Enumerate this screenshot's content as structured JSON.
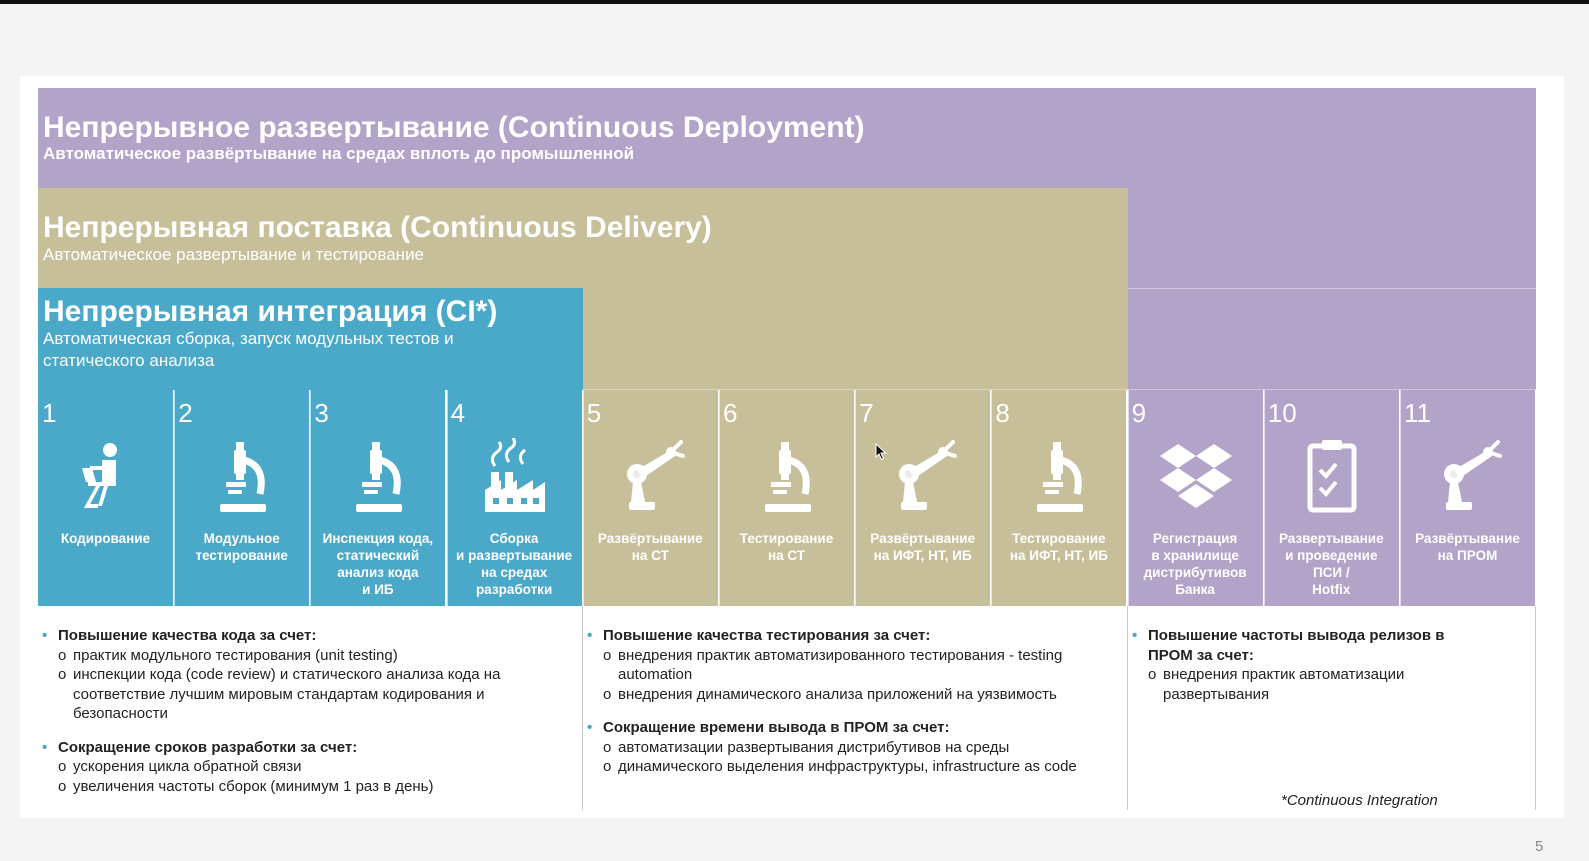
{
  "bands": {
    "cd": {
      "title": "Непрерывное развертывание (Continuous Deployment)",
      "subtitle": "Автоматическое развёртывание на средах вплоть до промышленной"
    },
    "cdl": {
      "title": "Непрерывная поставка (Continuous Delivery)",
      "subtitle": "Автоматическое развертывание и тестирование"
    },
    "ci": {
      "title": "Непрерывная интеграция (CI*)",
      "subtitle": "Автоматическая сборка, запуск модульных тестов и статического анализа"
    }
  },
  "steps": [
    {
      "num": "1",
      "label": "Кодирование",
      "icon": "coder-icon"
    },
    {
      "num": "2",
      "label": "Модульное\nтестирование",
      "icon": "microscope-icon"
    },
    {
      "num": "3",
      "label": "Инспекция кода,\nстатический\nанализ кода\nи ИБ",
      "icon": "microscope-icon"
    },
    {
      "num": "4",
      "label": "Сборка\nи развертывание\nна средах\nразработки",
      "icon": "factory-icon"
    },
    {
      "num": "5",
      "label": "Развёртывание\nна СТ",
      "icon": "robot-arm-icon"
    },
    {
      "num": "6",
      "label": "Тестирование\nна СТ",
      "icon": "microscope-icon"
    },
    {
      "num": "7",
      "label": "Развёртывание\nна ИФТ, НТ, ИБ",
      "icon": "robot-arm-icon"
    },
    {
      "num": "8",
      "label": "Тестирование\nна ИФТ, НТ, ИБ",
      "icon": "microscope-icon"
    },
    {
      "num": "9",
      "label": "Регистрация\nв хранилище\nдистрибутивов\nБанка",
      "icon": "dropbox-icon"
    },
    {
      "num": "10",
      "label": "Развертывание\nи проведение\nПСИ /\nHotfix",
      "icon": "clipboard-icon"
    },
    {
      "num": "11",
      "label": "Развёртывание\nна ПРОМ",
      "icon": "robot-arm-icon"
    }
  ],
  "columns": {
    "ci": {
      "b1": "Повышение качества кода за счет:",
      "b1_items": [
        "практик модульного тестирования (unit testing)",
        "инспекции кода (code review) и статического анализа кода на соответствие лучшим мировым стандартам кодирования и безопасности"
      ],
      "b2": "Сокращение сроков разработки за счет:",
      "b2_items": [
        "ускорения цикла обратной связи",
        "увеличения частоты сборок (минимум 1 раз в день)"
      ]
    },
    "cdl": {
      "b1": "Повышение качества тестирования за счет:",
      "b1_items": [
        "внедрения практик автоматизированного тестирования - testing automation",
        "внедрения динамического анализа приложений на уязвимость"
      ],
      "b2": "Сокращение времени вывода в ПРОМ за счет:",
      "b2_items": [
        "автоматизации развертывания дистрибутивов на среды",
        "динамического выделения инфраструктуры, infrastructure as code"
      ]
    },
    "cd": {
      "b1": "Повышение частоты вывода релизов в ПРОМ за счет:",
      "b1_items": [
        "внедрения практик автоматизации развертывания"
      ]
    }
  },
  "footnote": "*Continuous Integration",
  "page_number": "5",
  "colors": {
    "ci": "#4aa8c9",
    "cdl": "#c7bf99",
    "cd": "#b2a3c9"
  }
}
